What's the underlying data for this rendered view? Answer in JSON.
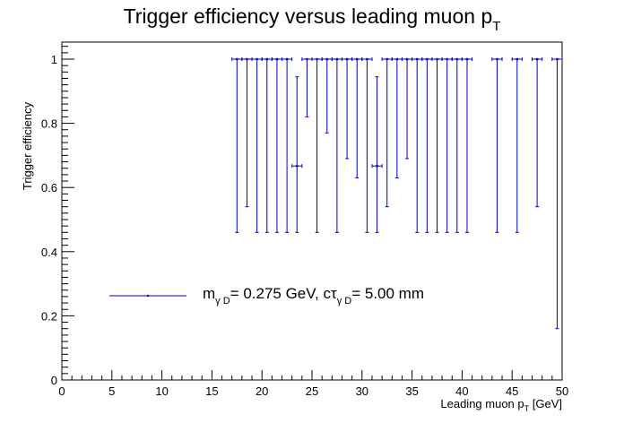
{
  "chart_data": {
    "type": "scatter",
    "title": {
      "main": "Trigger efficiency versus leading muon p",
      "sub": "T"
    },
    "xlabel": {
      "main": "Leading muon p",
      "sub": "T",
      "suffix": " [GeV]"
    },
    "ylabel": "Trigger efficiency",
    "xlim": [
      0,
      50
    ],
    "ylim": [
      0,
      1.05
    ],
    "grid": false,
    "legend_position": "middle-left",
    "x_ticks": [
      "0",
      "5",
      "10",
      "15",
      "20",
      "25",
      "30",
      "35",
      "40",
      "45",
      "50"
    ],
    "y_ticks": [
      "0",
      "0.2",
      "0.4",
      "0.6",
      "0.8",
      "1"
    ],
    "series": [
      {
        "legend": {
          "m": "m",
          "m_sub": "γ D",
          "mass": "= 0.275 GeV, ",
          "ctau": "cτ",
          "ctau_sub": "γ D",
          "ctau_val": "= 5.00 mm"
        },
        "color": "#0000cc",
        "points": [
          {
            "x": 17.5,
            "y": 1.0,
            "ylo": 0.46
          },
          {
            "x": 18.5,
            "y": 1.0,
            "ylo": 0.54
          },
          {
            "x": 19.5,
            "y": 1.0,
            "ylo": 0.46
          },
          {
            "x": 20.5,
            "y": 1.0,
            "ylo": 0.46
          },
          {
            "x": 21.5,
            "y": 1.0,
            "ylo": 0.46
          },
          {
            "x": 22.5,
            "y": 1.0,
            "ylo": 0.46
          },
          {
            "x": 23.5,
            "y": 0.667,
            "ylo": 0.46,
            "yhi": 0.945
          },
          {
            "x": 24.5,
            "y": 1.0,
            "ylo": 0.82
          },
          {
            "x": 25.5,
            "y": 1.0,
            "ylo": 0.46
          },
          {
            "x": 26.5,
            "y": 1.0,
            "ylo": 0.77
          },
          {
            "x": 27.5,
            "y": 1.0,
            "ylo": 0.46
          },
          {
            "x": 28.5,
            "y": 1.0,
            "ylo": 0.69
          },
          {
            "x": 29.5,
            "y": 1.0,
            "ylo": 0.63
          },
          {
            "x": 30.5,
            "y": 1.0,
            "ylo": 0.46
          },
          {
            "x": 31.5,
            "y": 0.667,
            "ylo": 0.46,
            "yhi": 0.945
          },
          {
            "x": 32.5,
            "y": 1.0,
            "ylo": 0.54
          },
          {
            "x": 33.5,
            "y": 1.0,
            "ylo": 0.63
          },
          {
            "x": 34.5,
            "y": 1.0,
            "ylo": 0.69
          },
          {
            "x": 35.5,
            "y": 1.0,
            "ylo": 0.46
          },
          {
            "x": 36.5,
            "y": 1.0,
            "ylo": 0.46
          },
          {
            "x": 37.5,
            "y": 1.0,
            "ylo": 0.46
          },
          {
            "x": 38.5,
            "y": 1.0,
            "ylo": 0.46
          },
          {
            "x": 39.5,
            "y": 1.0,
            "ylo": 0.46
          },
          {
            "x": 40.5,
            "y": 1.0,
            "ylo": 0.46
          },
          {
            "x": 43.5,
            "y": 1.0,
            "ylo": 0.46
          },
          {
            "x": 45.5,
            "y": 1.0,
            "ylo": 0.46
          },
          {
            "x": 47.5,
            "y": 1.0,
            "ylo": 0.54
          },
          {
            "x": 49.5,
            "y": 1.0,
            "ylo": 0.16
          }
        ]
      }
    ]
  }
}
